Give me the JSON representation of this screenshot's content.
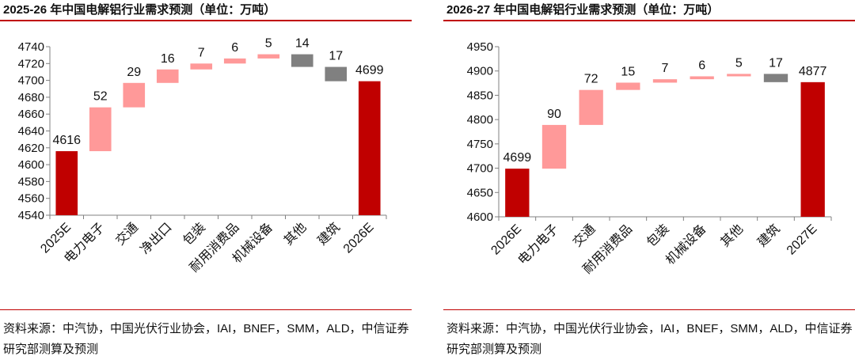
{
  "colors": {
    "total": "#c00000",
    "increase": "#ff9999",
    "other": "#808080",
    "axis": "#808080",
    "rule": "#c00000"
  },
  "chart_data": [
    {
      "type": "bar",
      "subtype": "waterfall",
      "title": "2025-26 年中国电解铝行业需求预测（单位：万吨）",
      "ylim": [
        4540,
        4740
      ],
      "yticks": [
        4540,
        4560,
        4580,
        4600,
        4620,
        4640,
        4660,
        4680,
        4700,
        4720,
        4740
      ],
      "categories": [
        "2025E",
        "电力电子",
        "交通",
        "净出口",
        "包装",
        "耐用消费品",
        "机械设备",
        "其他",
        "建筑",
        "2026E"
      ],
      "bars": [
        {
          "label": "2025E",
          "kind": "total",
          "start": 0,
          "end": 4616,
          "value_label": "4616"
        },
        {
          "label": "电力电子",
          "kind": "increase",
          "start": 4616,
          "end": 4668,
          "value_label": "52"
        },
        {
          "label": "交通",
          "kind": "increase",
          "start": 4668,
          "end": 4697,
          "value_label": "29"
        },
        {
          "label": "净出口",
          "kind": "increase",
          "start": 4697,
          "end": 4713,
          "value_label": "16"
        },
        {
          "label": "包装",
          "kind": "increase",
          "start": 4713,
          "end": 4720,
          "value_label": "7"
        },
        {
          "label": "耐用消费品",
          "kind": "increase",
          "start": 4720,
          "end": 4726,
          "value_label": "6"
        },
        {
          "label": "机械设备",
          "kind": "increase",
          "start": 4726,
          "end": 4731,
          "value_label": "5"
        },
        {
          "label": "其他",
          "kind": "other",
          "start": 4731,
          "end": 4716,
          "value_label": "14"
        },
        {
          "label": "建筑",
          "kind": "other",
          "start": 4716,
          "end": 4699,
          "value_label": "17"
        },
        {
          "label": "2026E",
          "kind": "total",
          "start": 0,
          "end": 4699,
          "value_label": "4699"
        }
      ],
      "source": "资料来源：中汽协，中国光伏行业协会，IAI，BNEF，SMM，ALD，中信证券研究部测算及预测"
    },
    {
      "type": "bar",
      "subtype": "waterfall",
      "title": "2026-27 年中国电解铝行业需求预测（单位：万吨）",
      "ylim": [
        4600,
        4950
      ],
      "yticks": [
        4600,
        4650,
        4700,
        4750,
        4800,
        4850,
        4900,
        4950
      ],
      "categories": [
        "2026E",
        "电力电子",
        "交通",
        "耐用消费品",
        "包装",
        "机械设备",
        "其他",
        "建筑",
        "2027E"
      ],
      "bars": [
        {
          "label": "2026E",
          "kind": "total",
          "start": 0,
          "end": 4699,
          "value_label": "4699"
        },
        {
          "label": "电力电子",
          "kind": "increase",
          "start": 4699,
          "end": 4789,
          "value_label": "90"
        },
        {
          "label": "交通",
          "kind": "increase",
          "start": 4789,
          "end": 4861,
          "value_label": "72"
        },
        {
          "label": "耐用消费品",
          "kind": "increase",
          "start": 4861,
          "end": 4876,
          "value_label": "15"
        },
        {
          "label": "包装",
          "kind": "increase",
          "start": 4876,
          "end": 4883,
          "value_label": "7"
        },
        {
          "label": "机械设备",
          "kind": "increase",
          "start": 4883,
          "end": 4889,
          "value_label": "6"
        },
        {
          "label": "其他",
          "kind": "increase",
          "start": 4889,
          "end": 4894,
          "value_label": "5"
        },
        {
          "label": "建筑",
          "kind": "other",
          "start": 4894,
          "end": 4877,
          "value_label": "17"
        },
        {
          "label": "2027E",
          "kind": "total",
          "start": 0,
          "end": 4877,
          "value_label": "4877"
        }
      ],
      "source": "资料来源：中汽协，中国光伏行业协会，IAI，BNEF，SMM，ALD，中信证券研究部测算及预测"
    }
  ]
}
